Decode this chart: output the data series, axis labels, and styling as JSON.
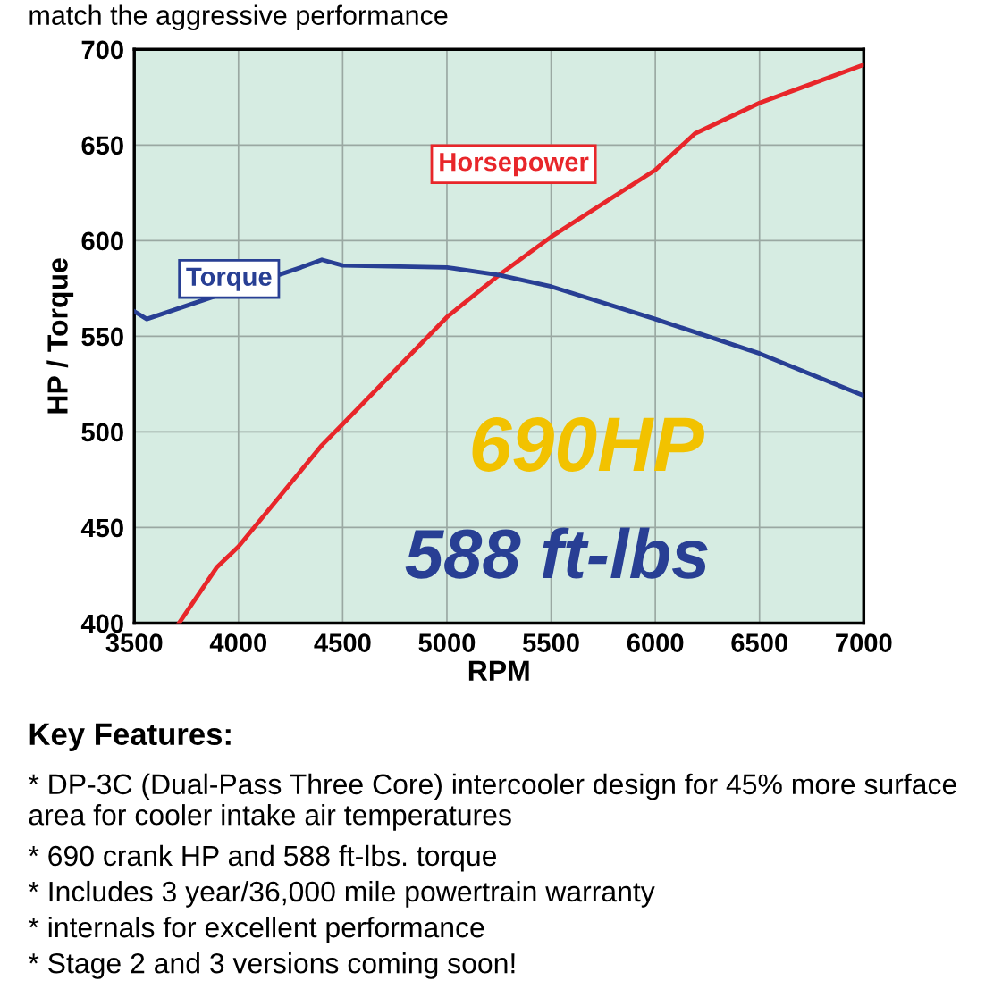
{
  "chart_data": {
    "type": "line",
    "xlabel": "RPM",
    "ylabel": "HP / Torque",
    "xlim": [
      3500,
      7000
    ],
    "xticks": [
      3500,
      4000,
      4500,
      5000,
      5500,
      6000,
      6500,
      7000
    ],
    "ylim": [
      400,
      700
    ],
    "yticks": [
      400,
      450,
      500,
      550,
      600,
      650,
      700
    ],
    "grid": true,
    "marker": "none",
    "line_style": "solid",
    "series": [
      {
        "name": "Horsepower",
        "color": "#e8262a",
        "x": [
          3715,
          3895,
          4000,
          4400,
          4500,
          5000,
          5250,
          5500,
          6000,
          6190,
          6500,
          6700,
          7000
        ],
        "values": [
          400,
          429,
          440,
          493,
          504,
          560,
          582,
          602,
          637,
          656,
          672,
          680,
          692
        ]
      },
      {
        "name": "Torque",
        "color": "#283f94",
        "x": [
          3500,
          3560,
          4300,
          4400,
          4500,
          5000,
          5250,
          5500,
          6000,
          6500,
          7000
        ],
        "values": [
          563,
          559,
          586,
          590,
          587,
          586,
          582,
          576,
          559,
          541,
          519
        ]
      }
    ],
    "annotations": [
      "match the aggressive performance",
      "690HP",
      "588 ft-lbs",
      "Key Features:",
      "* DP-3C (Dual-Pass Three Core) intercooler design for 45% more surface area for cooler intake air temperatures",
      "* 690 crank HP and 588 ft-lbs. torque",
      "* Includes 3 year/36,000 mile powertrain warranty",
      "* internals for excellent performance",
      "* Stage 2 and 3 versions coming soon!"
    ]
  }
}
